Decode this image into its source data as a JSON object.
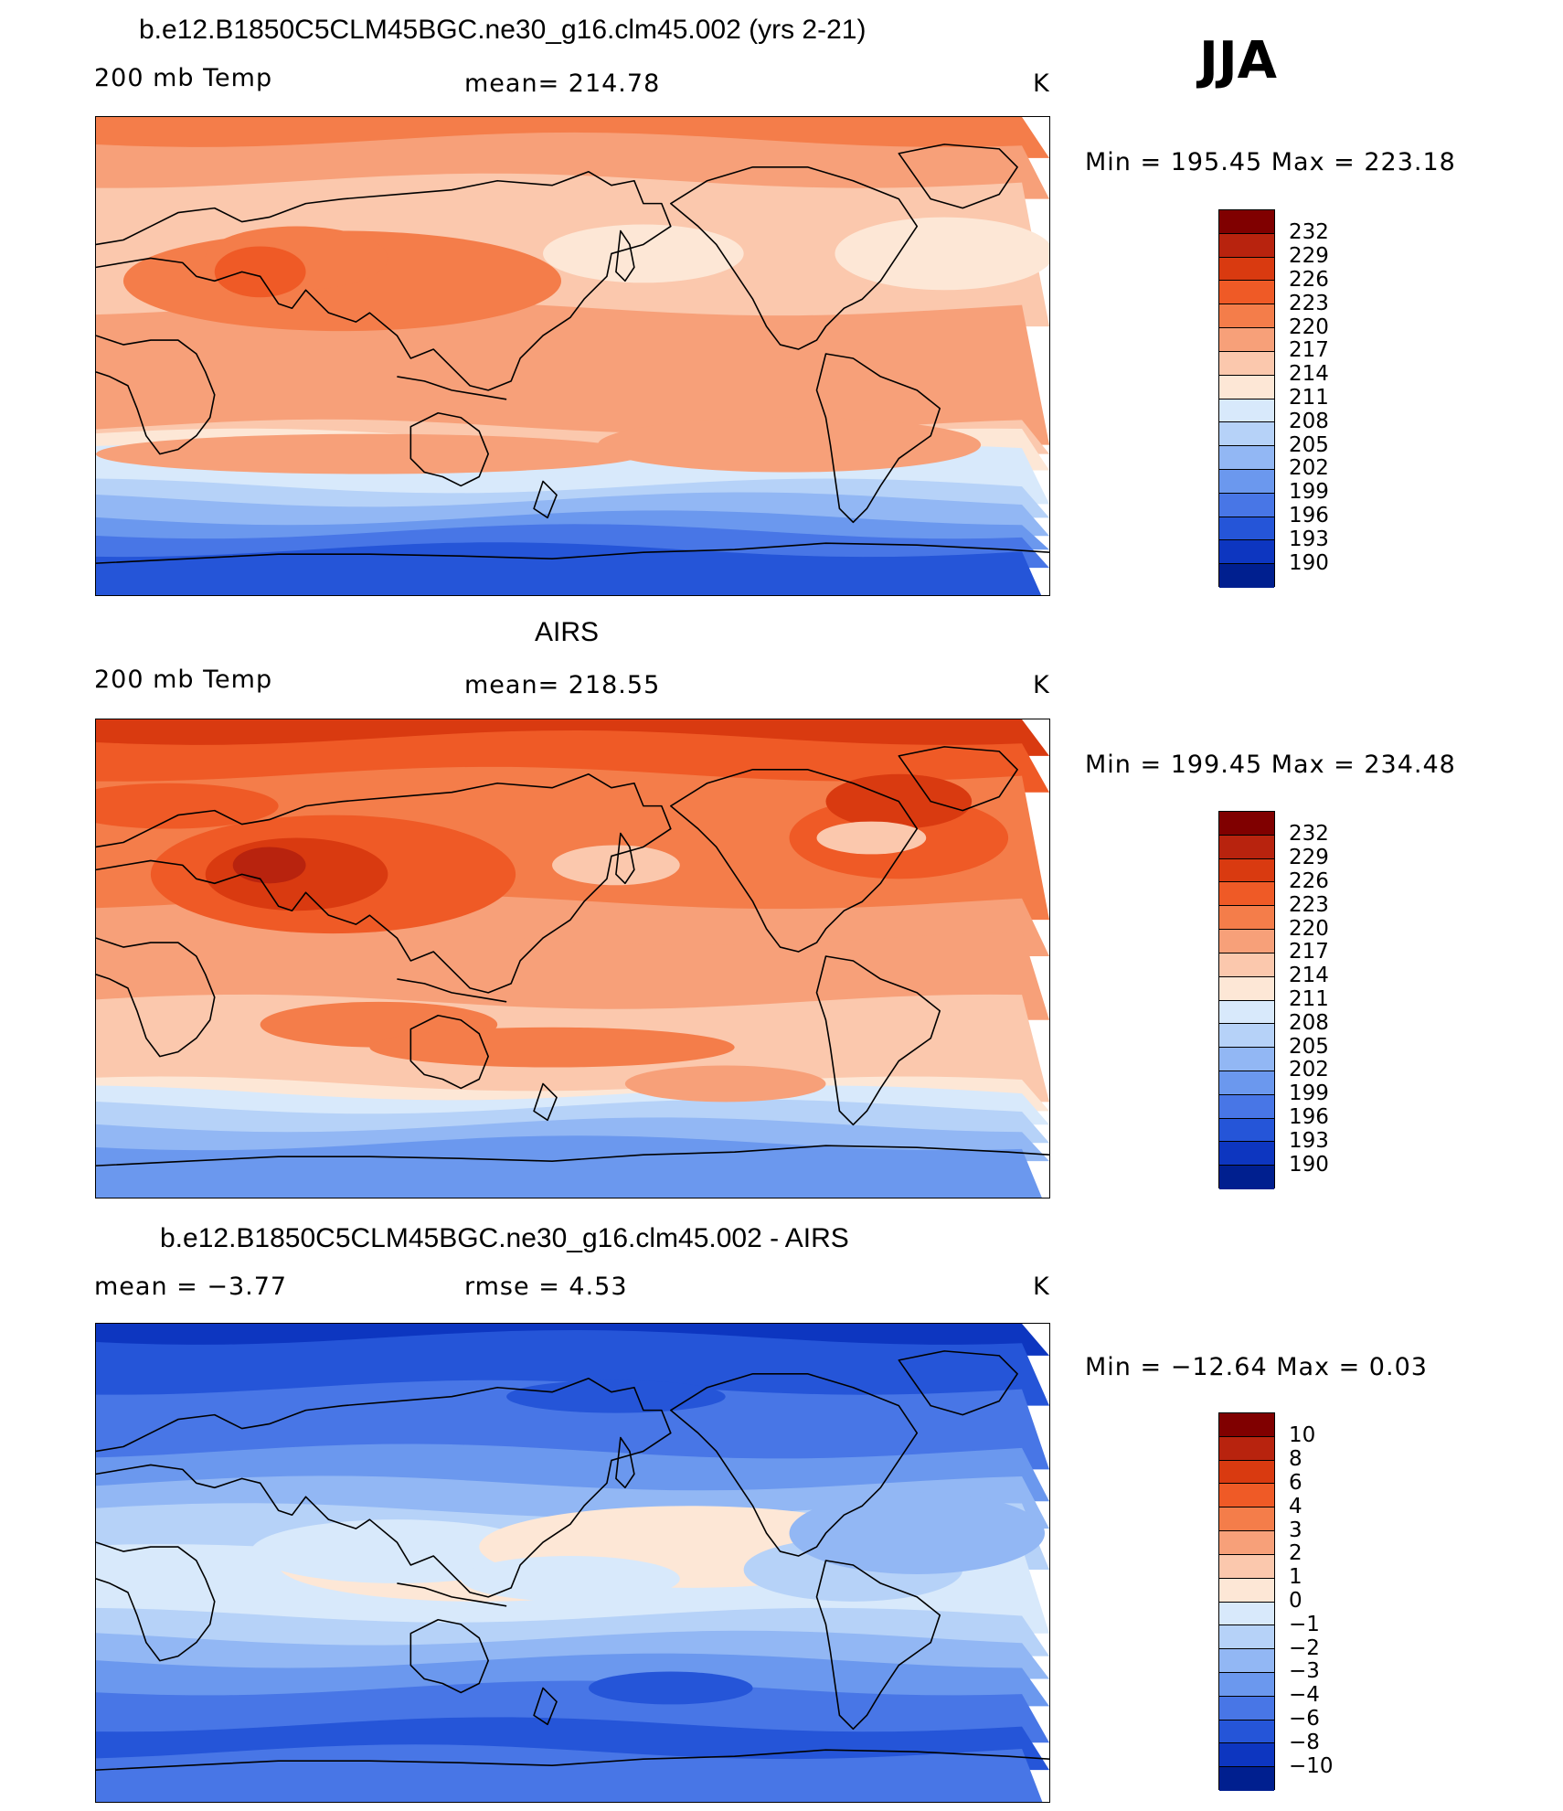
{
  "season": "JJA",
  "panels": [
    {
      "title": "b.e12.B1850C5CLM45BGC.ne30_g16.clm45.002 (yrs 2-21)",
      "left_label": "200 mb Temp",
      "center_label": "mean=  214.78",
      "units": "K",
      "minmax": "Min  =  195.45  Max  =  223.18",
      "kind": "model",
      "colorbar": {
        "labels": [
          "232",
          "229",
          "226",
          "223",
          "220",
          "217",
          "214",
          "211",
          "208",
          "205",
          "202",
          "199",
          "196",
          "193",
          "190"
        ],
        "colors": [
          "#800000",
          "#b8230e",
          "#d93a10",
          "#ef5a26",
          "#f47d4a",
          "#f7a079",
          "#fbc8ad",
          "#fde7d6",
          "#d8e9fb",
          "#b6d2f8",
          "#92b7f4",
          "#6b98ee",
          "#4876e6",
          "#2555d8",
          "#0d36c0",
          "#001f8f"
        ]
      }
    },
    {
      "title": "AIRS",
      "left_label": "200 mb Temp",
      "center_label": "mean=  218.55",
      "units": "K",
      "minmax": "Min  =  199.45  Max  =  234.48",
      "kind": "obs",
      "colorbar": {
        "labels": [
          "232",
          "229",
          "226",
          "223",
          "220",
          "217",
          "214",
          "211",
          "208",
          "205",
          "202",
          "199",
          "196",
          "193",
          "190"
        ],
        "colors": [
          "#800000",
          "#b8230e",
          "#d93a10",
          "#ef5a26",
          "#f47d4a",
          "#f7a079",
          "#fbc8ad",
          "#fde7d6",
          "#d8e9fb",
          "#b6d2f8",
          "#92b7f4",
          "#6b98ee",
          "#4876e6",
          "#2555d8",
          "#0d36c0",
          "#001f8f"
        ]
      }
    },
    {
      "title": "b.e12.B1850C5CLM45BGC.ne30_g16.clm45.002 - AIRS",
      "left_label": "mean  =    −3.77",
      "center_label": "rmse  =     4.53",
      "units": "K",
      "minmax": "Min  =  −12.64  Max  =     0.03",
      "kind": "diff",
      "colorbar": {
        "labels": [
          "10",
          "8",
          "6",
          "4",
          "3",
          "2",
          "1",
          "0",
          "−1",
          "−2",
          "−3",
          "−4",
          "−6",
          "−8",
          "−10"
        ],
        "colors": [
          "#800000",
          "#b8230e",
          "#d93a10",
          "#ef5a26",
          "#f47d4a",
          "#f7a079",
          "#fbc8ad",
          "#fde7d6",
          "#d8e9fb",
          "#b6d2f8",
          "#92b7f4",
          "#6b98ee",
          "#4876e6",
          "#2555d8",
          "#0d36c0",
          "#001f8f"
        ]
      }
    }
  ]
}
